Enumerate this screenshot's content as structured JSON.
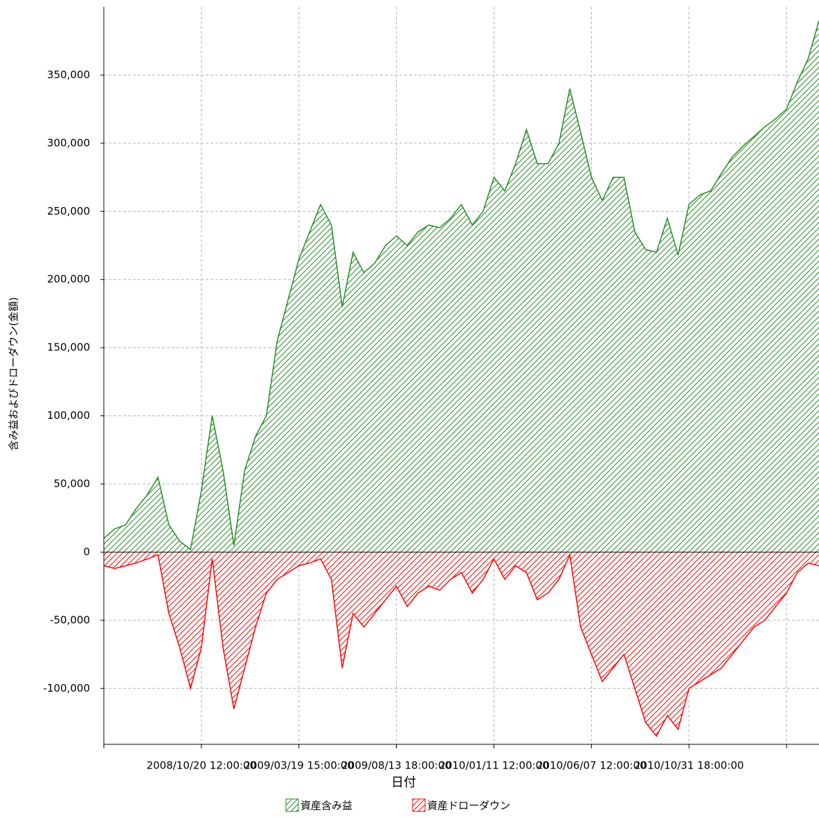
{
  "chart_data": {
    "type": "area",
    "x_label": "日付",
    "y_label": "含み益およびドローダウン(金額)",
    "categories": [
      null,
      null,
      null,
      null,
      null,
      null,
      null,
      null,
      null,
      "2008/10/20 12:00:00",
      null,
      null,
      null,
      null,
      null,
      null,
      null,
      null,
      "2009/03/19 15:00:00",
      null,
      null,
      null,
      null,
      null,
      null,
      null,
      null,
      "2009/08/13 18:00:00",
      null,
      null,
      null,
      null,
      null,
      null,
      null,
      null,
      "2010/01/11 12:00:00",
      null,
      null,
      null,
      null,
      null,
      null,
      null,
      null,
      "2010/06/07 12:00:00",
      null,
      null,
      null,
      null,
      null,
      null,
      null,
      null,
      "2010/10/31 18:00:00",
      null,
      null,
      null,
      null,
      null,
      null,
      null,
      null,
      null,
      null,
      null,
      null
    ],
    "series": [
      {
        "name": "資産含み益",
        "color": "#228b22",
        "values": [
          10000,
          17000,
          20000,
          32000,
          42000,
          55000,
          20000,
          8000,
          2000,
          45000,
          100000,
          60000,
          5000,
          60000,
          85000,
          100000,
          155000,
          185000,
          215000,
          235000,
          255000,
          240000,
          180000,
          220000,
          205000,
          212000,
          225000,
          232000,
          225000,
          235000,
          240000,
          238000,
          245000,
          255000,
          240000,
          250000,
          275000,
          265000,
          285000,
          310000,
          285000,
          285000,
          300000,
          340000,
          308000,
          275000,
          258000,
          275000,
          275000,
          235000,
          222000,
          220000,
          245000,
          218000,
          255000,
          262000,
          265000,
          278000,
          290000,
          298000,
          305000,
          312000,
          318000,
          325000,
          345000,
          362000,
          390000
        ]
      },
      {
        "name": "資産ドローダウン",
        "color": "#ff0000",
        "values": [
          -10000,
          -12000,
          -10000,
          -8000,
          -5000,
          -2000,
          -45000,
          -70000,
          -100000,
          -70000,
          -5000,
          -70000,
          -115000,
          -85000,
          -55000,
          -30000,
          -20000,
          -15000,
          -10000,
          -8000,
          -5000,
          -20000,
          -85000,
          -45000,
          -55000,
          -45000,
          -35000,
          -25000,
          -40000,
          -30000,
          -25000,
          -28000,
          -20000,
          -15000,
          -30000,
          -20000,
          -5000,
          -20000,
          -10000,
          -15000,
          -35000,
          -30000,
          -20000,
          -2000,
          -55000,
          -75000,
          -95000,
          -85000,
          -75000,
          -100000,
          -125000,
          -135000,
          -120000,
          -130000,
          -100000,
          -95000,
          -90000,
          -85000,
          -75000,
          -65000,
          -55000,
          -50000,
          -40000,
          -30000,
          -15000,
          -8000,
          -10000
        ]
      }
    ],
    "ylim": [
      -141000,
      400000
    ],
    "yticks": [
      {
        "value": -100000,
        "label": "-100,000"
      },
      {
        "value": -50000,
        "label": "-50,000"
      },
      0,
      {
        "value": 50000,
        "label": "50,000"
      },
      {
        "value": 100000,
        "label": "100,000"
      },
      {
        "value": 150000,
        "label": "150,000"
      },
      {
        "value": 200000,
        "label": "200,000"
      },
      {
        "value": 250000,
        "label": "250,000"
      },
      {
        "value": 300000,
        "label": "300,000"
      },
      {
        "value": 350000,
        "label": "350,000"
      }
    ],
    "grid": true,
    "hatched": true,
    "legend": "bottom"
  }
}
